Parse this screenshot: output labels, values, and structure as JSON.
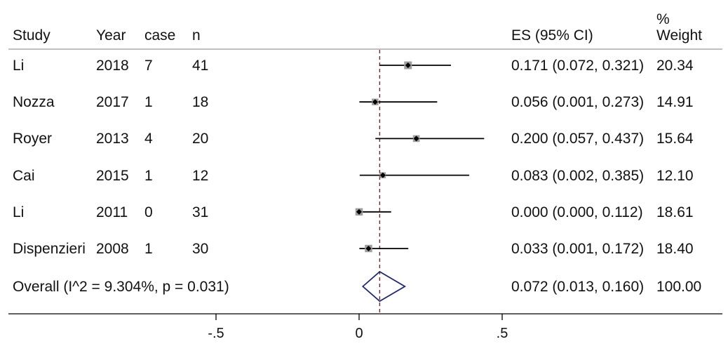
{
  "columns": {
    "study": "Study",
    "year": "Year",
    "case": "case",
    "n": "n",
    "es": "ES (95% CI)",
    "weight_top": "%",
    "weight_bottom": "Weight"
  },
  "rows": [
    {
      "study": "Li",
      "year": "2018",
      "case": "7",
      "n": "41",
      "es_text": "0.171 (0.072, 0.321)",
      "weight": "20.34"
    },
    {
      "study": "Nozza",
      "year": "2017",
      "case": "1",
      "n": "18",
      "es_text": "0.056 (0.001, 0.273)",
      "weight": "14.91"
    },
    {
      "study": "Royer",
      "year": "2013",
      "case": "4",
      "n": "20",
      "es_text": "0.200 (0.057, 0.437)",
      "weight": "15.64"
    },
    {
      "study": "Cai",
      "year": "2015",
      "case": "1",
      "n": "12",
      "es_text": "0.083 (0.002, 0.385)",
      "weight": "12.10"
    },
    {
      "study": "Li",
      "year": "2011",
      "case": "0",
      "n": "31",
      "es_text": "0.000 (0.000, 0.112)",
      "weight": "18.61"
    },
    {
      "study": "Dispenzieri",
      "year": "2008",
      "case": "1",
      "n": "30",
      "es_text": "0.033 (0.001, 0.172)",
      "weight": "18.40"
    }
  ],
  "overall": {
    "label": "Overall  (I^2 =   9.304%, p = 0.031)",
    "es_text": "0.072 (0.013, 0.160)",
    "weight": "100.00"
  },
  "chart_data": {
    "type": "forest",
    "studies": [
      "Li 2018",
      "Nozza 2017",
      "Royer 2013",
      "Cai 2015",
      "Li 2011",
      "Dispenzieri 2008"
    ],
    "es": [
      0.171,
      0.056,
      0.2,
      0.083,
      0.0,
      0.033
    ],
    "ci_low": [
      0.072,
      0.001,
      0.057,
      0.002,
      0.0,
      0.001
    ],
    "ci_high": [
      0.321,
      0.273,
      0.437,
      0.385,
      0.112,
      0.172
    ],
    "weights": [
      20.34,
      14.91,
      15.64,
      12.1,
      18.61,
      18.4
    ],
    "overall": {
      "es": 0.072,
      "ci_low": 0.013,
      "ci_high": 0.16
    },
    "xticks": [
      -0.5,
      0,
      0.5
    ],
    "xtick_labels": [
      "-.5",
      "0",
      ".5"
    ],
    "colors": {
      "marker": "#9e9e9e",
      "diamond": "#1f2a6b",
      "ref_line": "#8b1a1a"
    }
  }
}
